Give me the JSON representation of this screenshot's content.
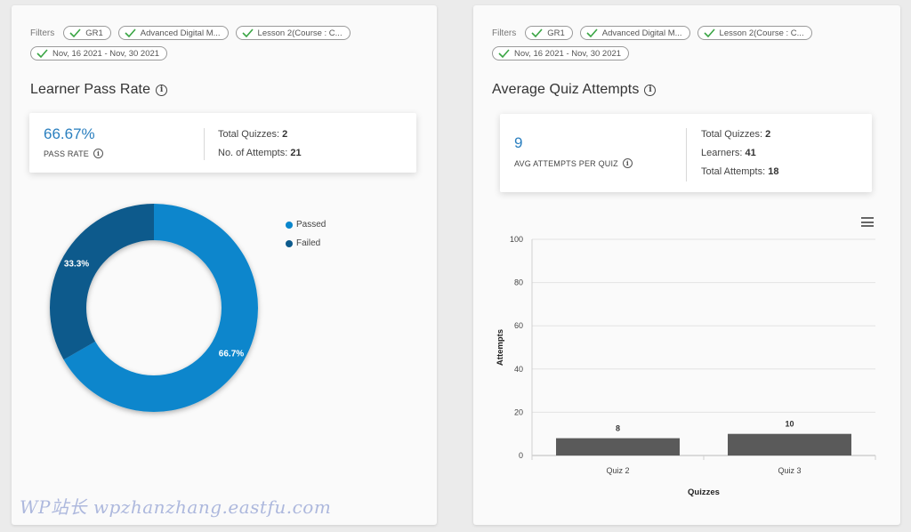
{
  "filters": {
    "label": "Filters",
    "chips": [
      "GR1",
      "Advanced Digital M...",
      "Lesson 2(Course : C...",
      "Nov, 16 2021 - Nov, 30 2021"
    ]
  },
  "left": {
    "title": "Learner Pass Rate",
    "pass_rate": "66.67%",
    "pass_rate_label": "PASS RATE",
    "total_quizzes_label": "Total Quizzes:",
    "total_quizzes": "2",
    "attempts_label": "No. of Attempts:",
    "attempts": "21"
  },
  "right": {
    "title": "Average Quiz Attempts",
    "avg": "9",
    "avg_label": "AVG ATTEMPTS PER QUIZ",
    "total_quizzes_label": "Total Quizzes:",
    "total_quizzes": "2",
    "learners_label": "Learners:",
    "learners": "41",
    "total_attempts_label": "Total Attempts:",
    "total_attempts": "18"
  },
  "watermark": "WP站长 wpzhanzhang.eastfu.com",
  "colors": {
    "passed": "#0a86cc",
    "failed": "#0d5a8c",
    "bar": "#5a5a5a",
    "accent": "#2a7fbf",
    "check": "#3aa544"
  },
  "chart_data": [
    {
      "type": "pie",
      "variant": "donut",
      "categories": [
        "Passed",
        "Failed"
      ],
      "values": [
        66.7,
        33.3
      ],
      "data_labels": [
        "66.7%",
        "33.3%"
      ],
      "legend": "top-right"
    },
    {
      "type": "bar",
      "categories": [
        "Quiz 2",
        "Quiz 3"
      ],
      "values": [
        8,
        10
      ],
      "xlabel": "Quizzes",
      "ylabel": "Attempts",
      "ylim": [
        0,
        100
      ],
      "yticks": [
        0,
        20,
        40,
        60,
        80,
        100
      ],
      "grid": true
    }
  ]
}
